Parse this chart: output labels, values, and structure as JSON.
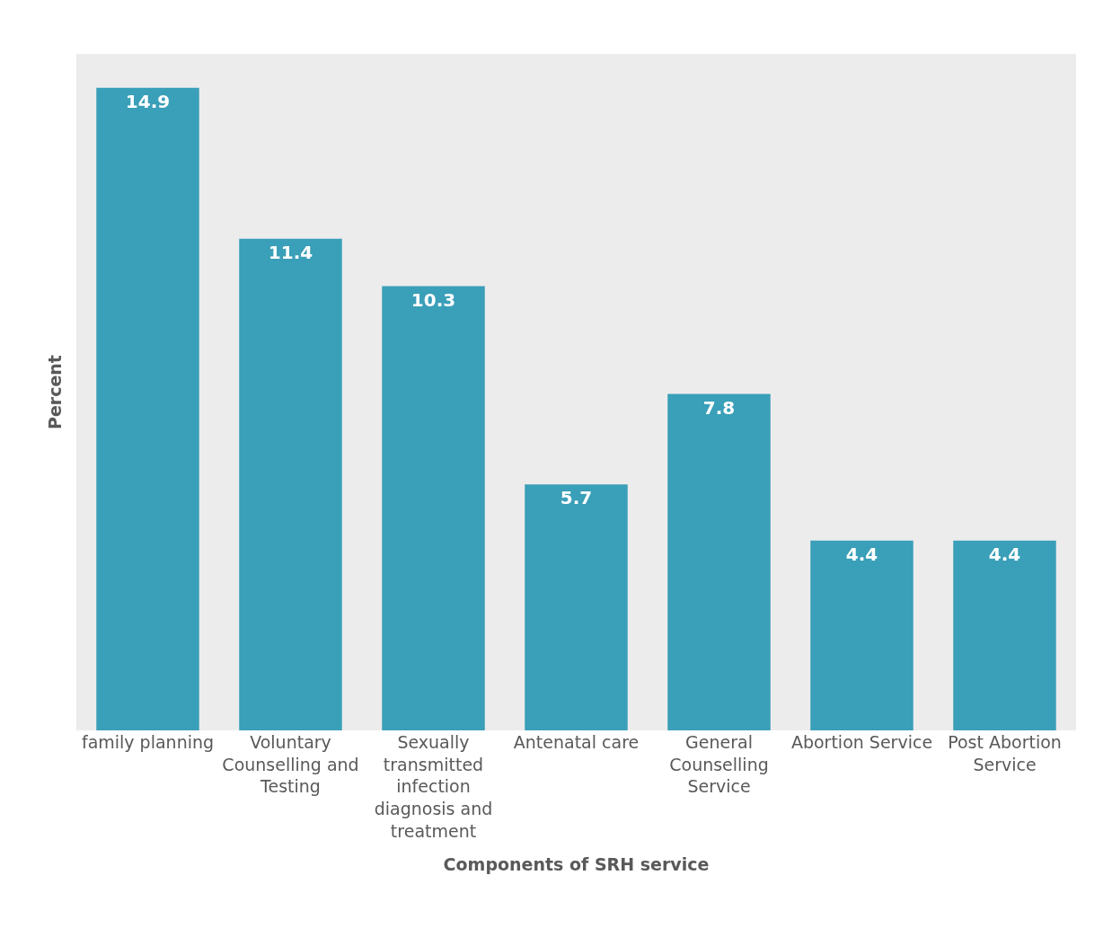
{
  "chart_data": {
    "type": "bar",
    "xlabel": "Components of SRH service",
    "ylabel": "Percent",
    "categories": [
      "family planning",
      "Voluntary Counselling and Testing",
      "Sexually transmitted infection diagnosis and treatment",
      "Antenatal care",
      "General Counselling Service",
      "Abortion Service",
      "Post Abortion Service"
    ],
    "values": [
      14.9,
      11.4,
      10.3,
      5.7,
      7.8,
      4.4,
      4.4
    ],
    "color": "#3a9fb8",
    "data_labels": true,
    "grid": false,
    "legend": false
  }
}
